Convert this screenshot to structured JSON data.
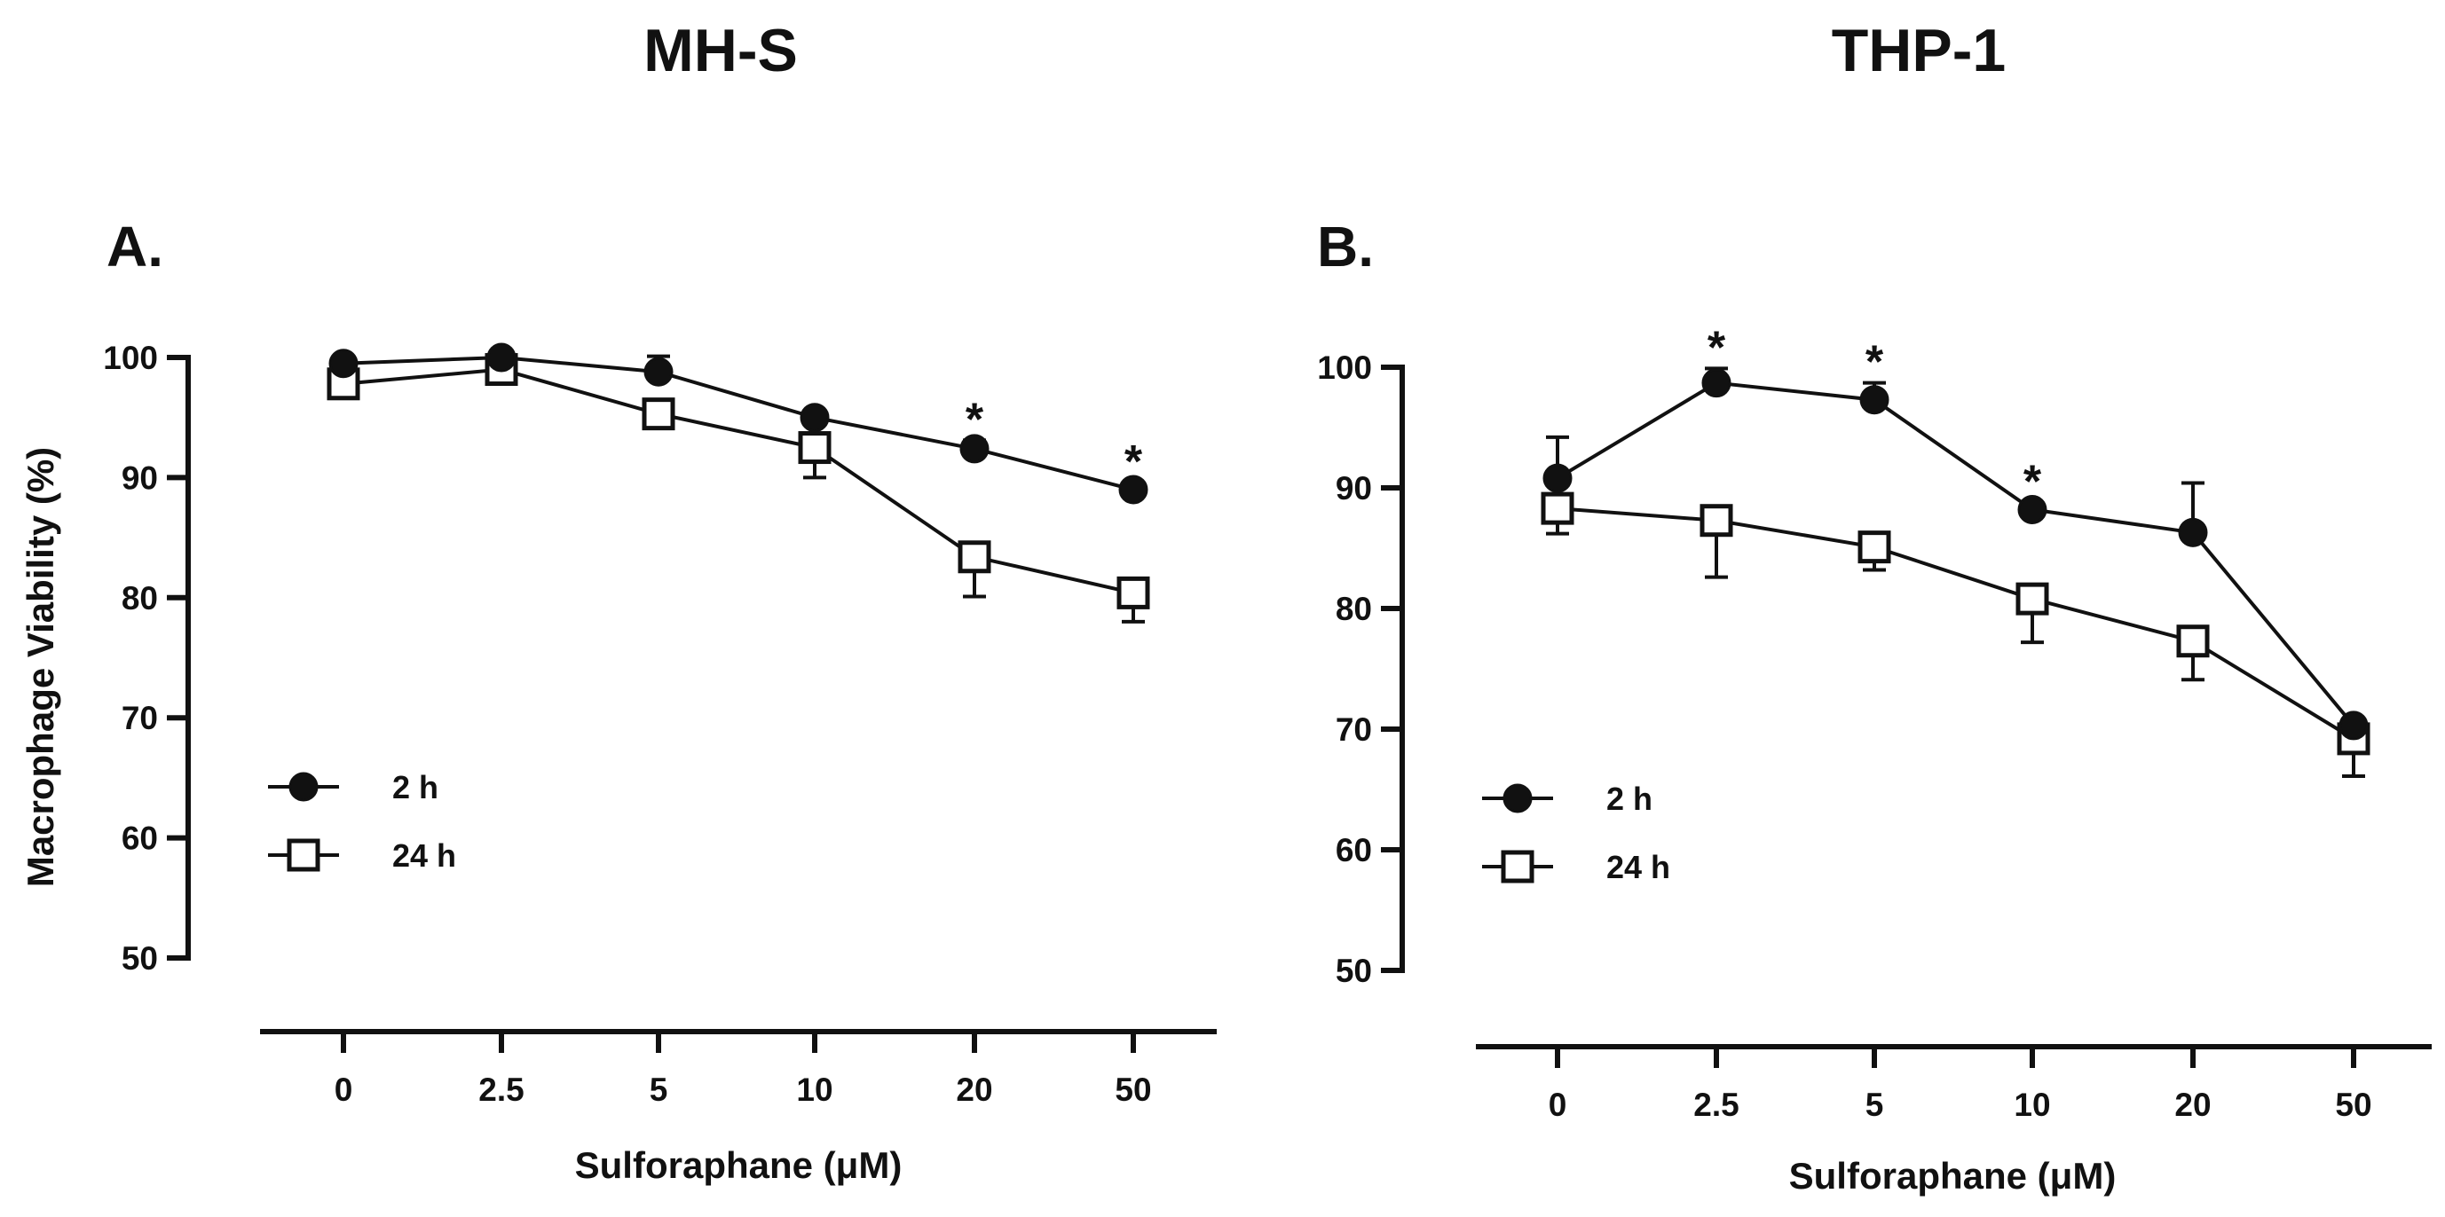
{
  "chart_data": [
    {
      "type": "line",
      "title": "MH-S",
      "panel_label": "A.",
      "xlabel": "Sulforaphane (μM)",
      "ylabel": "Macrophage Viability (%)",
      "categories": [
        "0",
        "2.5",
        "5",
        "10",
        "20",
        "50"
      ],
      "ylim": [
        50,
        100
      ],
      "yticks": [
        50,
        60,
        70,
        80,
        90,
        100
      ],
      "grid": false,
      "legend_position": "center-left",
      "series": [
        {
          "name": "2 h",
          "marker": "filled-circle",
          "values": [
            99.5,
            100.0,
            98.8,
            95.0,
            92.4,
            89.0
          ],
          "errors": [
            0.6,
            0.4,
            1.3,
            0.5,
            0.7,
            0.6
          ],
          "significant": [
            false,
            false,
            false,
            false,
            true,
            true
          ]
        },
        {
          "name": "24 h",
          "marker": "open-square",
          "values": [
            97.8,
            99.0,
            95.3,
            92.5,
            83.4,
            80.4
          ],
          "errors": [
            0.8,
            0.6,
            0.8,
            2.5,
            3.3,
            2.4
          ],
          "significant": [
            false,
            false,
            false,
            false,
            false,
            false
          ]
        }
      ],
      "annotation": "*"
    },
    {
      "type": "line",
      "title": "THP-1",
      "panel_label": "B.",
      "xlabel": "Sulforaphane (μM)",
      "ylabel": "",
      "categories": [
        "0",
        "2.5",
        "5",
        "10",
        "20",
        "50"
      ],
      "ylim": [
        50,
        100
      ],
      "yticks": [
        50,
        60,
        70,
        80,
        90,
        100
      ],
      "grid": false,
      "legend_position": "center-left",
      "series": [
        {
          "name": "2 h",
          "marker": "filled-circle",
          "values": [
            90.8,
            98.7,
            97.3,
            88.2,
            86.3,
            70.3
          ],
          "errors": [
            3.4,
            1.2,
            1.4,
            0.6,
            4.1,
            0.5
          ],
          "significant": [
            false,
            true,
            true,
            true,
            false,
            false
          ]
        },
        {
          "name": "24 h",
          "marker": "open-square",
          "values": [
            88.3,
            87.3,
            85.1,
            80.8,
            77.3,
            69.2
          ],
          "errors": [
            2.1,
            4.7,
            1.9,
            3.6,
            3.2,
            3.1
          ],
          "significant": [
            false,
            false,
            false,
            false,
            false,
            false
          ]
        }
      ],
      "annotation": "*"
    }
  ]
}
